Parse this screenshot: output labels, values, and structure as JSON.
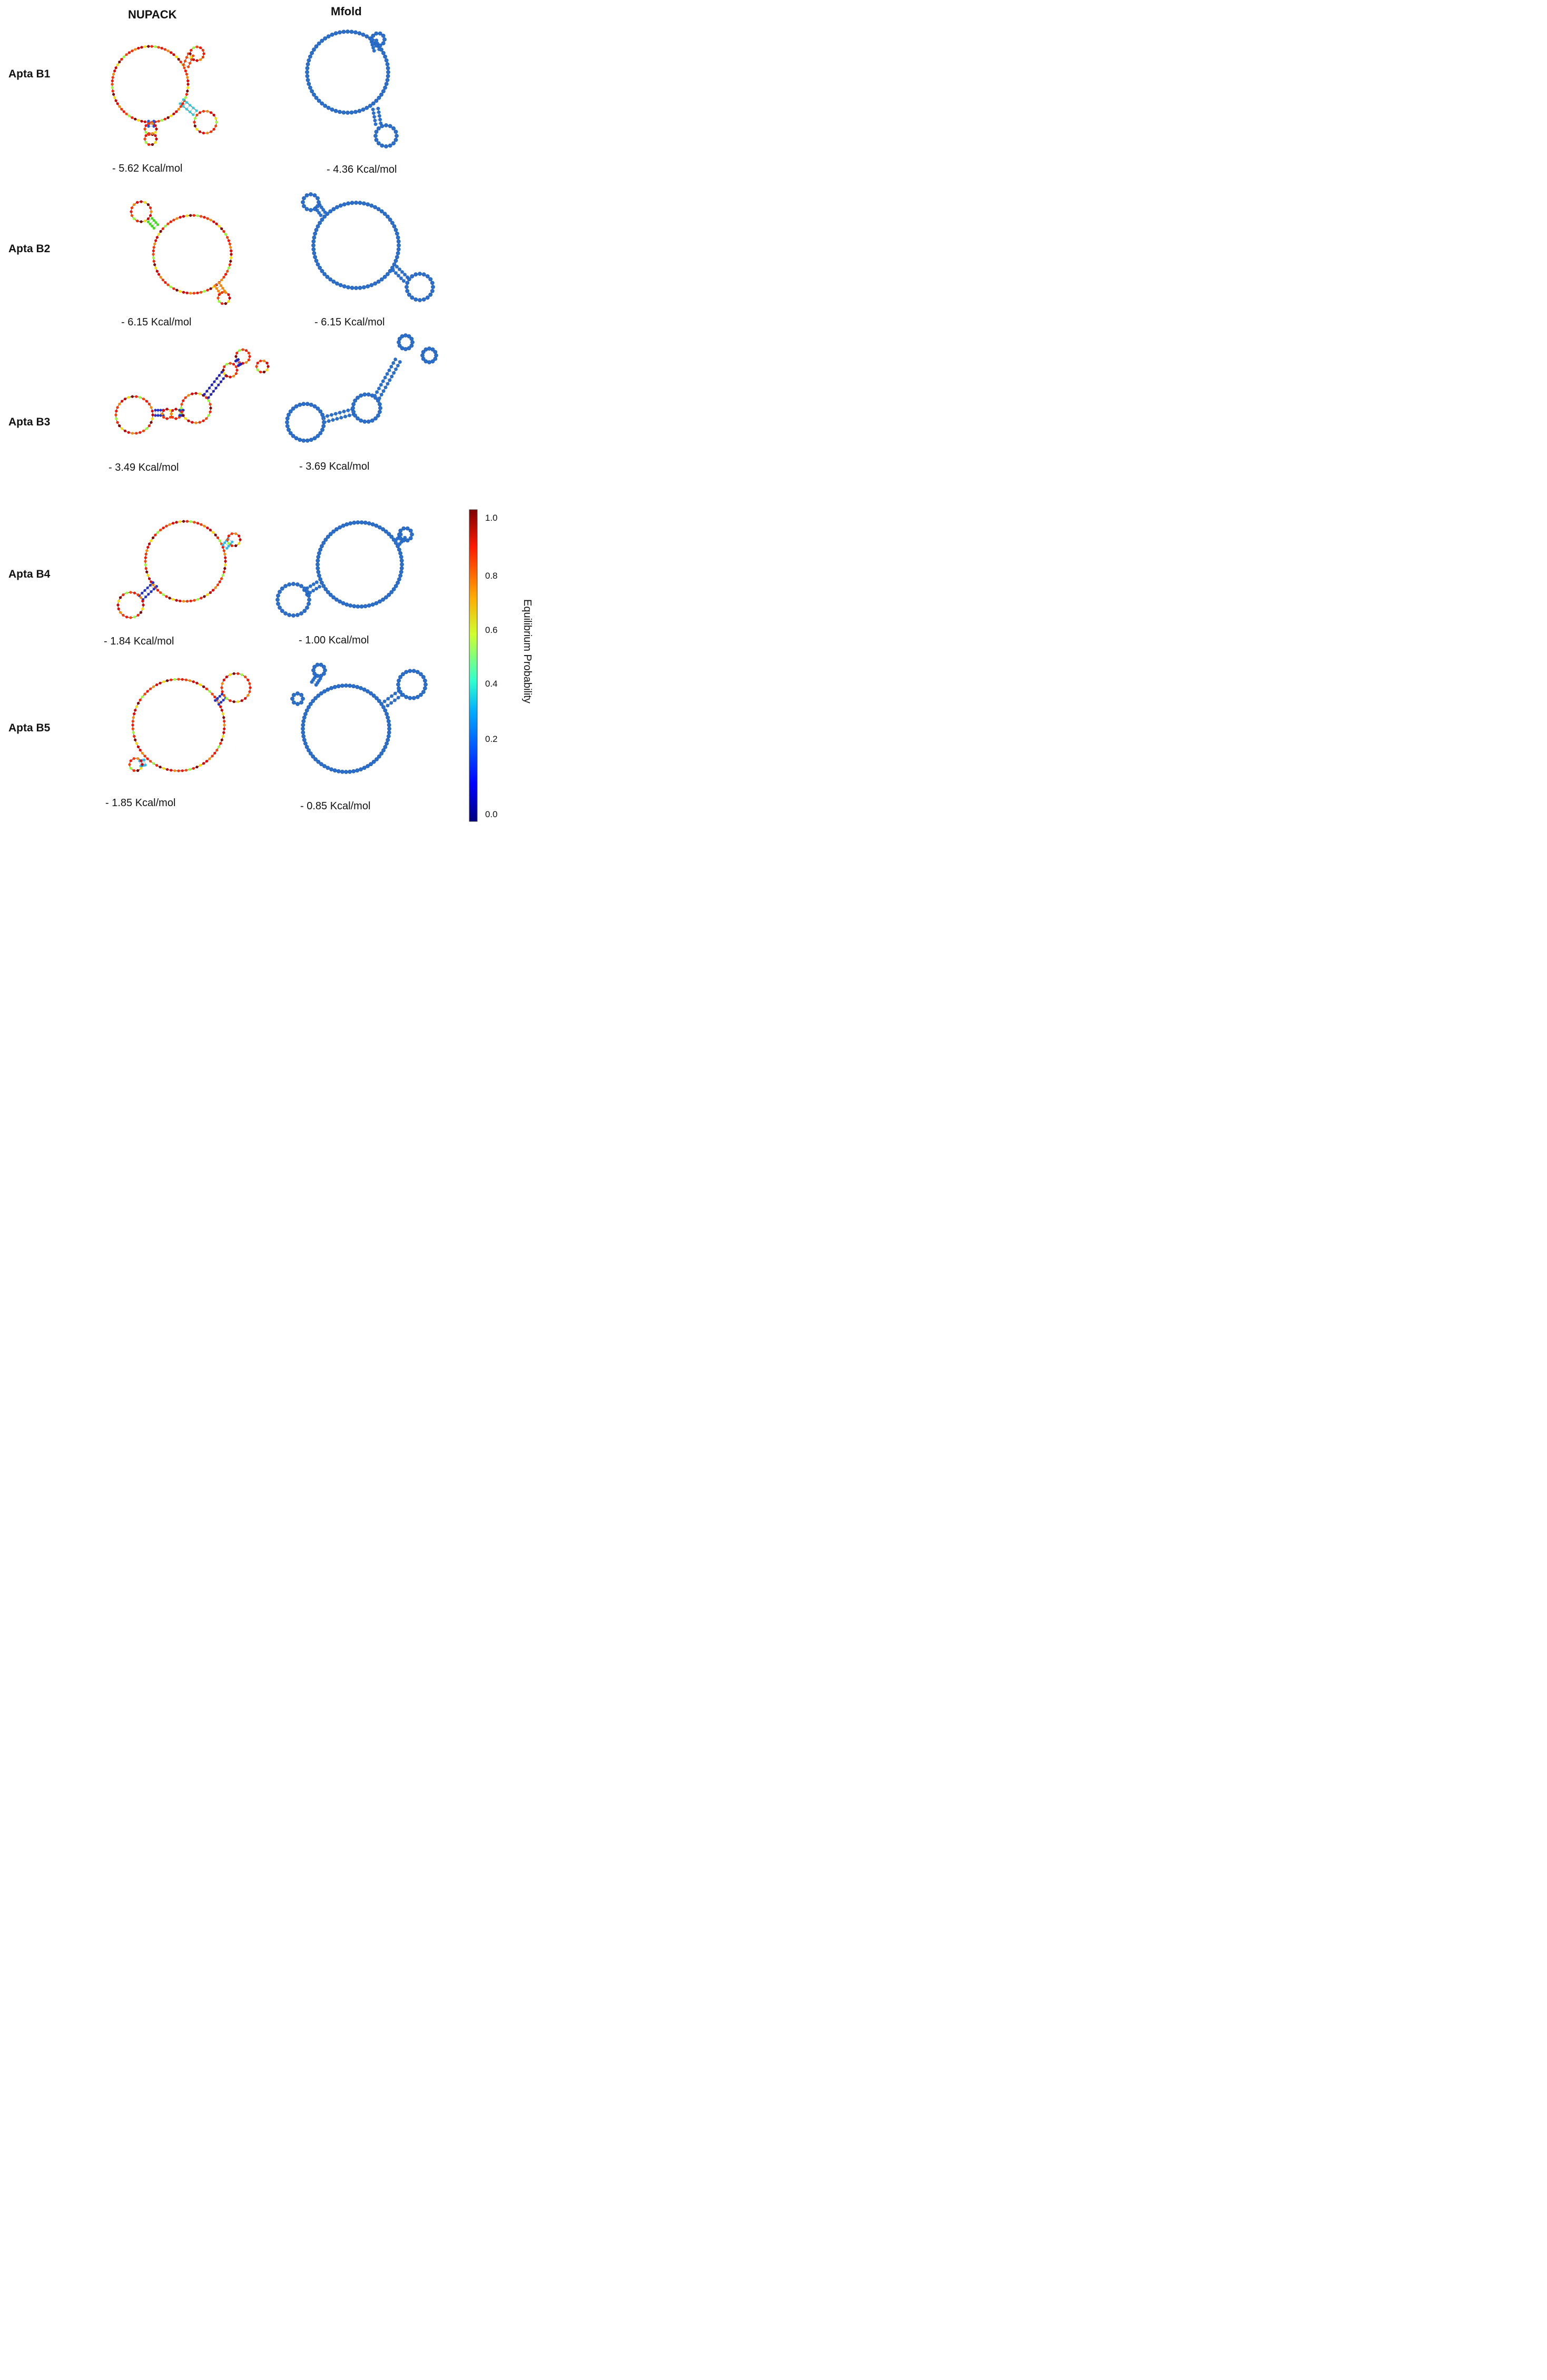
{
  "headers": {
    "nupack": "NUPACK",
    "mfold": "Mfold"
  },
  "rows": [
    {
      "label": "Apta B1",
      "nupack_energy": "- 5.62 Kcal/mol",
      "mfold_energy": "- 4.36 Kcal/mol"
    },
    {
      "label": "Apta B2",
      "nupack_energy": "- 6.15 Kcal/mol",
      "mfold_energy": "- 6.15 Kcal/mol"
    },
    {
      "label": "Apta B3",
      "nupack_energy": "- 3.49 Kcal/mol",
      "mfold_energy": "- 3.69 Kcal/mol"
    },
    {
      "label": "Apta B4",
      "nupack_energy": "- 1.84 Kcal/mol",
      "mfold_energy": "- 1.00 Kcal/mol"
    },
    {
      "label": "Apta B5",
      "nupack_energy": "- 1.85 Kcal/mol",
      "mfold_energy": "- 0.85 Kcal/mol"
    }
  ],
  "colorbar": {
    "title": "Equilibrium Probability",
    "ticks": [
      "1.0",
      "0.8",
      "0.6",
      "0.4",
      "0.2",
      "0.0"
    ],
    "colormap": [
      "#00007f",
      "#0000ff",
      "#00aaff",
      "#2fffcf",
      "#cfff2f",
      "#ffaa00",
      "#ff1a00",
      "#7f0000"
    ]
  },
  "colors": {
    "mfold_node": "#2a6fcc",
    "mfold_stroke": "#1d56a8",
    "pair_line": "#b0b0b0",
    "backbone": "#555555"
  }
}
